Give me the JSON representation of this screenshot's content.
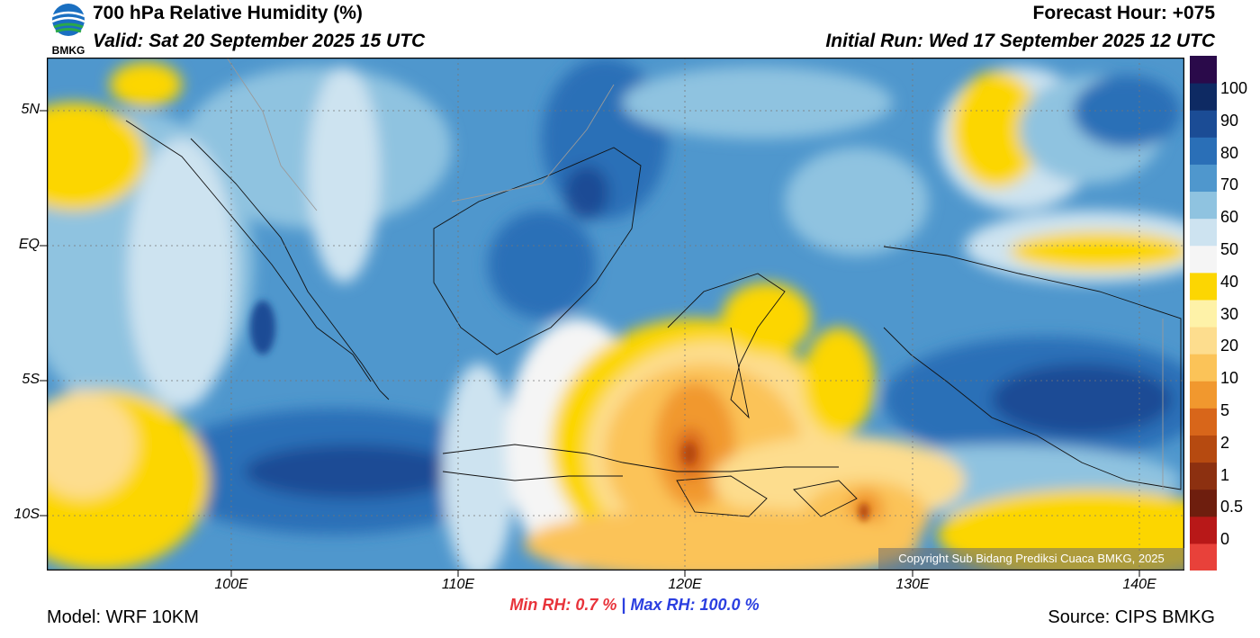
{
  "header": {
    "title": "700 hPa Relative Humidity (%)",
    "valid": "Valid: Sat 20 September 2025 15 UTC",
    "forecast_hour": "Forecast Hour: +075",
    "initial_run": "Initial Run: Wed 17 September 2025 12 UTC",
    "logo_text": "BMKG"
  },
  "map": {
    "lat_labels": [
      "5N",
      "EQ",
      "5S",
      "10S"
    ],
    "lon_labels": [
      "100E",
      "110E",
      "120E",
      "130E",
      "140E"
    ],
    "copyright": "Copyright Sub Bidang Prediksi Cuaca BMKG, 2025"
  },
  "colorbar": {
    "labels": [
      "100",
      "90",
      "80",
      "70",
      "60",
      "50",
      "40",
      "30",
      "20",
      "10",
      "5",
      "2",
      "1",
      "0.5",
      "0"
    ],
    "colors": [
      "#e8413a",
      "#b81818",
      "#6e1e0e",
      "#8c3010",
      "#b64a10",
      "#d8661a",
      "#f1982e",
      "#fbc358",
      "#fddd8e",
      "#fef2a8",
      "#fcd602",
      "#f5f5f5",
      "#cde3f0",
      "#8fc3e0",
      "#4f97cd",
      "#2a6fb7",
      "#1b4c95",
      "#0e2a63",
      "#2a0a4a"
    ]
  },
  "footer": {
    "model": "Model: WRF 10KM",
    "min_rh": "Min RH:   0.7 %",
    "separator": "|",
    "max_rh": "Max RH: 100.0 %",
    "source": "Source: CIPS BMKG"
  }
}
